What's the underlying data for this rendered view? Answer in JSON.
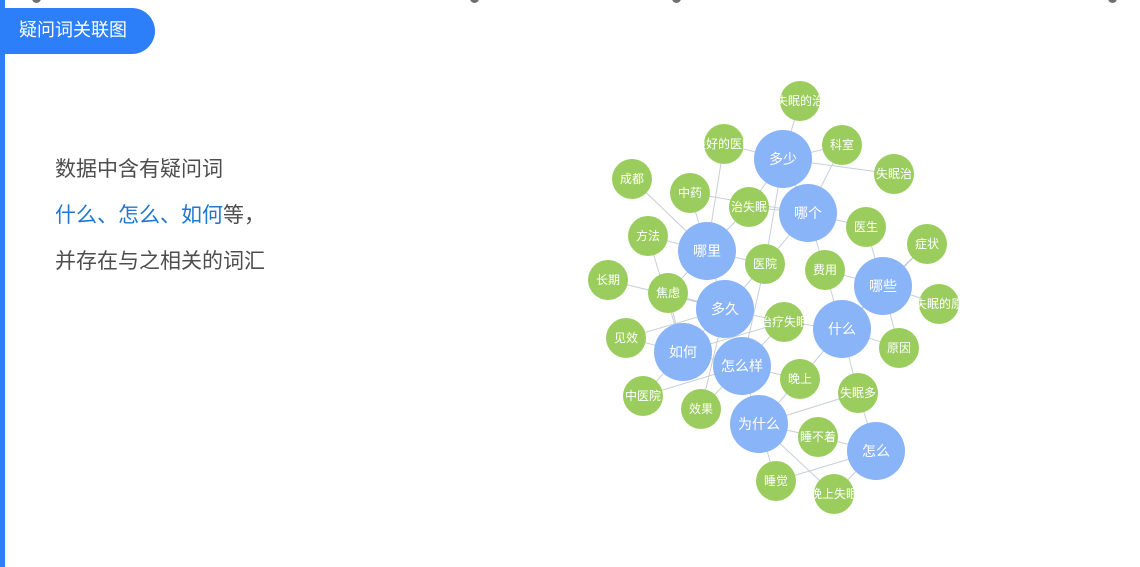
{
  "header": {
    "title": "疑问词关联图"
  },
  "intro": {
    "line1": "数据中含有疑问词",
    "line2_words": [
      "什么",
      "、",
      "怎么",
      "、",
      "如何"
    ],
    "line2_suffix": "等，",
    "line3": "并存在与之相关的词汇"
  },
  "colors": {
    "accent": "#2d7ff9",
    "highlight": "#1f77d0",
    "question_node": "#8ab4f8",
    "related_node": "#9acd5e",
    "edge": "#c9ced6"
  },
  "chart_data": {
    "type": "network",
    "question_words": [
      "多少",
      "哪个",
      "哪里",
      "多久",
      "如何",
      "怎么样",
      "什么",
      "哪些",
      "为什么",
      "怎么"
    ],
    "related_words": [
      "失眠的治",
      "最好的医院",
      "科室",
      "失眠治",
      "成都",
      "中药",
      "治失眠",
      "医生",
      "症状",
      "方法",
      "医院",
      "费用",
      "长期",
      "焦虑",
      "失眠的原",
      "见效",
      "治疗失眠",
      "原因",
      "晚上",
      "中医院",
      "失眠多",
      "效果",
      "睡不着",
      "睡觉",
      "晚上失眠"
    ],
    "edges": [
      [
        "多少",
        "失眠的治"
      ],
      [
        "多少",
        "最好的医院"
      ],
      [
        "多少",
        "科室"
      ],
      [
        "多少",
        "失眠治"
      ],
      [
        "多少",
        "治失眠"
      ],
      [
        "多少",
        "医院"
      ],
      [
        "哪个",
        "科室"
      ],
      [
        "哪个",
        "医生"
      ],
      [
        "哪个",
        "治失眠"
      ],
      [
        "哪个",
        "医院"
      ],
      [
        "哪个",
        "费用"
      ],
      [
        "哪个",
        "中药"
      ],
      [
        "哪里",
        "成都"
      ],
      [
        "哪里",
        "中药"
      ],
      [
        "哪里",
        "方法"
      ],
      [
        "哪里",
        "治失眠"
      ],
      [
        "哪里",
        "医院"
      ],
      [
        "哪里",
        "焦虑"
      ],
      [
        "哪里",
        "最好的医院"
      ],
      [
        "多久",
        "长期"
      ],
      [
        "多久",
        "焦虑"
      ],
      [
        "多久",
        "治疗失眠"
      ],
      [
        "多久",
        "医院"
      ],
      [
        "多久",
        "效果"
      ],
      [
        "多久",
        "见效"
      ],
      [
        "如何",
        "见效"
      ],
      [
        "如何",
        "中医院"
      ],
      [
        "如何",
        "治疗失眠"
      ],
      [
        "如何",
        "焦虑"
      ],
      [
        "如何",
        "方法"
      ],
      [
        "怎么样",
        "效果"
      ],
      [
        "怎么样",
        "治疗失眠"
      ],
      [
        "怎么样",
        "医院"
      ],
      [
        "怎么样",
        "中医院"
      ],
      [
        "怎么样",
        "晚上"
      ],
      [
        "什么",
        "原因"
      ],
      [
        "什么",
        "症状"
      ],
      [
        "什么",
        "治疗失眠"
      ],
      [
        "什么",
        "晚上"
      ],
      [
        "什么",
        "费用"
      ],
      [
        "什么",
        "失眠多"
      ],
      [
        "哪些",
        "症状"
      ],
      [
        "哪些",
        "失眠的原"
      ],
      [
        "哪些",
        "原因"
      ],
      [
        "哪些",
        "费用"
      ],
      [
        "哪些",
        "医生"
      ],
      [
        "为什么",
        "晚上"
      ],
      [
        "为什么",
        "睡不着"
      ],
      [
        "为什么",
        "睡觉"
      ],
      [
        "为什么",
        "失眠多"
      ],
      [
        "为什么",
        "晚上失眠"
      ],
      [
        "怎么",
        "失眠多"
      ],
      [
        "怎么",
        "睡不着"
      ],
      [
        "怎么",
        "晚上失眠"
      ],
      [
        "怎么",
        "睡觉"
      ],
      [
        "多少",
        "哪个"
      ],
      [
        "哪里",
        "多久"
      ],
      [
        "多久",
        "如何"
      ],
      [
        "如何",
        "怎么样"
      ],
      [
        "什么",
        "哪些"
      ],
      [
        "怎么样",
        "为什么"
      ]
    ]
  }
}
